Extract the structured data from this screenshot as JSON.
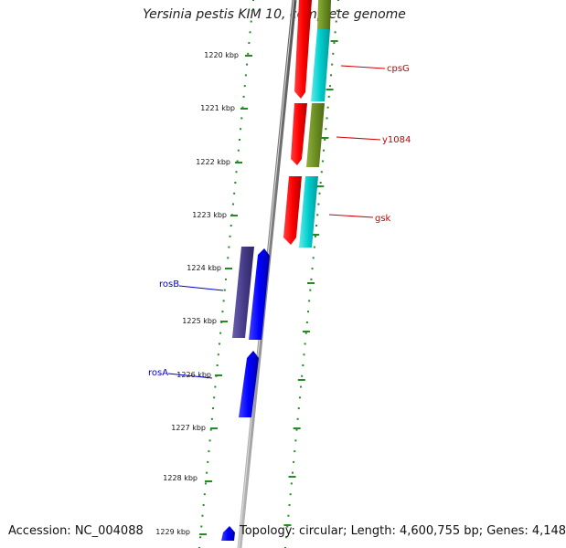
{
  "title": "Yersinia pestis KIM 10, complete genome",
  "footer": {
    "accession": "Accession: NC_004088",
    "topology": "Topology: circular; Length: 4,600,755 bp; Genes: 4,148"
  },
  "ticks": [
    "1220 kbp",
    "1221 kbp",
    "1222 kbp",
    "1223 kbp",
    "1224 kbp",
    "1225 kbp",
    "1226 kbp",
    "1227 kbp",
    "1228 kbp",
    "1229 kbp"
  ],
  "genes_right": [
    {
      "label": "cpsG",
      "color": "#cc0000"
    },
    {
      "label": "y1084",
      "color": "#cc0000"
    },
    {
      "label": "gsk",
      "color": "#cc0000"
    }
  ],
  "genes_left": [
    {
      "label": "rosB",
      "color": "#0000cc"
    },
    {
      "label": "rosA",
      "color": "#0000cc"
    }
  ],
  "colors": {
    "red": "#ff0000",
    "cyan": "#00cccc",
    "olive": "#6b8e23",
    "blue": "#0000ff",
    "slate": "#483d8b",
    "green_dots": "#228b22",
    "backbone": "#888888"
  }
}
